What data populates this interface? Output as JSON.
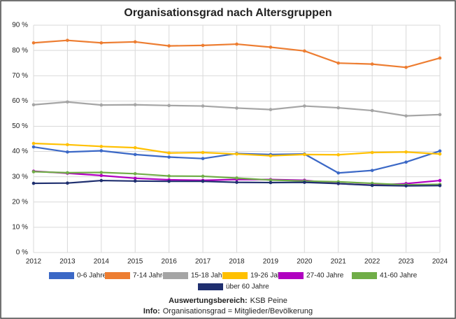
{
  "chart_data": {
    "type": "line",
    "title": "Organisationsgrad nach Altersgruppen",
    "categories": [
      "2012",
      "2013",
      "2014",
      "2015",
      "2016",
      "2017",
      "2018",
      "2019",
      "2020",
      "2021",
      "2022",
      "2023",
      "2024"
    ],
    "series": [
      {
        "name": "0-6 Jahre",
        "color": "#3b68c6",
        "values": [
          41.8,
          39.8,
          40.3,
          38.8,
          37.8,
          37.2,
          39.2,
          38.8,
          39.0,
          31.5,
          32.5,
          35.8,
          40.2
        ]
      },
      {
        "name": "7-14 Jahre",
        "color": "#ed7d31",
        "values": [
          83.0,
          84.0,
          83.0,
          83.4,
          81.8,
          82.0,
          82.5,
          81.3,
          79.8,
          75.0,
          74.6,
          73.3,
          77.0
        ]
      },
      {
        "name": "15-18 Jahre",
        "color": "#a5a5a5",
        "values": [
          58.5,
          59.6,
          58.4,
          58.5,
          58.2,
          58.0,
          57.2,
          56.6,
          58.0,
          57.3,
          56.2,
          54.1,
          54.6
        ]
      },
      {
        "name": "19-26 Jahre",
        "color": "#ffc000",
        "values": [
          43.2,
          42.7,
          42.0,
          41.5,
          39.4,
          39.6,
          39.0,
          38.3,
          38.8,
          38.7,
          39.6,
          39.8,
          39.0
        ]
      },
      {
        "name": "27-40 Jahre",
        "color": "#b000c0",
        "values": [
          32.2,
          31.4,
          30.5,
          29.4,
          28.8,
          28.6,
          28.9,
          28.9,
          28.6,
          27.3,
          26.7,
          27.3,
          28.5
        ]
      },
      {
        "name": "41-60 Jahre",
        "color": "#70ad47",
        "values": [
          32.0,
          31.6,
          31.7,
          31.2,
          30.3,
          30.2,
          29.5,
          28.7,
          28.3,
          28.0,
          27.4,
          26.8,
          27.0
        ]
      },
      {
        "name": "über 60 Jahre",
        "color": "#1f2f6f",
        "values": [
          27.4,
          27.5,
          28.5,
          28.3,
          28.2,
          28.2,
          27.8,
          27.7,
          27.8,
          27.3,
          26.6,
          26.4,
          26.5
        ]
      }
    ],
    "ylim": [
      0,
      90
    ],
    "yticks": [
      {
        "value": 0,
        "label": "0 %"
      },
      {
        "value": 10,
        "label": "10 %"
      },
      {
        "value": 20,
        "label": "20 %"
      },
      {
        "value": 30,
        "label": "30 %"
      },
      {
        "value": 40,
        "label": "40 %"
      },
      {
        "value": 50,
        "label": "50 %"
      },
      {
        "value": 60,
        "label": "60 %"
      },
      {
        "value": 70,
        "label": "70 %"
      },
      {
        "value": 80,
        "label": "80 %"
      },
      {
        "value": 90,
        "label": "90 %"
      }
    ],
    "grid": true,
    "legend": "bottom",
    "notes": [
      {
        "label": "Auswertungsbereich:",
        "text": "KSB Peine"
      },
      {
        "label": "Info:",
        "text": "Organisationsgrad = Mitglieder/Bevölkerung"
      }
    ]
  }
}
